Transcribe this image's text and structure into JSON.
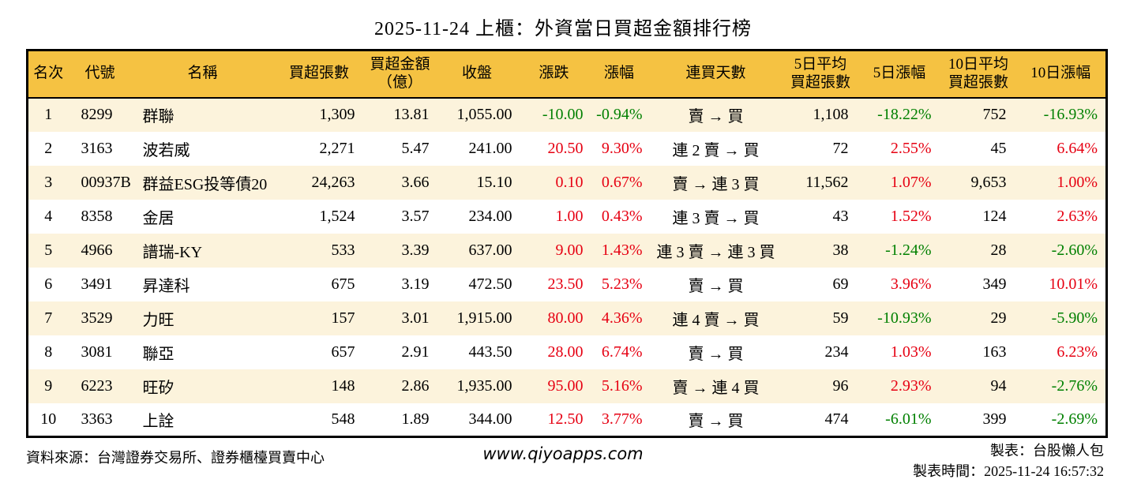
{
  "title": "2025-11-24 上櫃：外資當日買超金額排行榜",
  "chart_data": {
    "type": "table",
    "title": "2025-11-24 上櫃：外資當日買超金額排行榜",
    "columns": [
      "名次",
      "代號",
      "名稱",
      "買超張數",
      "買超金額\n（億）",
      "收盤",
      "漲跌",
      "漲幅",
      "連買天數",
      "5日平均\n買超張數",
      "5日漲幅",
      "10日平均\n買超張數",
      "10日漲幅"
    ],
    "rows": [
      [
        "1",
        "8299",
        "群聯",
        "1,309",
        "13.81",
        "1,055.00",
        "-10.00",
        "-0.94%",
        "賣 → 買",
        "1,108",
        "-18.22%",
        "752",
        "-16.93%"
      ],
      [
        "2",
        "3163",
        "波若威",
        "2,271",
        "5.47",
        "241.00",
        "20.50",
        "9.30%",
        "連 2 賣 → 買",
        "72",
        "2.55%",
        "45",
        "6.64%"
      ],
      [
        "3",
        "00937B",
        "群益ESG投等債20",
        "24,263",
        "3.66",
        "15.10",
        "0.10",
        "0.67%",
        "賣 → 連 3 買",
        "11,562",
        "1.07%",
        "9,653",
        "1.00%"
      ],
      [
        "4",
        "8358",
        "金居",
        "1,524",
        "3.57",
        "234.00",
        "1.00",
        "0.43%",
        "連 3 賣 → 買",
        "43",
        "1.52%",
        "124",
        "2.63%"
      ],
      [
        "5",
        "4966",
        "譜瑞-KY",
        "533",
        "3.39",
        "637.00",
        "9.00",
        "1.43%",
        "連 3 賣 → 連 3 買",
        "38",
        "-1.24%",
        "28",
        "-2.60%"
      ],
      [
        "6",
        "3491",
        "昇達科",
        "675",
        "3.19",
        "472.50",
        "23.50",
        "5.23%",
        "賣 → 買",
        "69",
        "3.96%",
        "349",
        "10.01%"
      ],
      [
        "7",
        "3529",
        "力旺",
        "157",
        "3.01",
        "1,915.00",
        "80.00",
        "4.36%",
        "連 4 賣 → 買",
        "59",
        "-10.93%",
        "29",
        "-5.90%"
      ],
      [
        "8",
        "3081",
        "聯亞",
        "657",
        "2.91",
        "443.50",
        "28.00",
        "6.74%",
        "賣 → 買",
        "234",
        "1.03%",
        "163",
        "6.23%"
      ],
      [
        "9",
        "6223",
        "旺矽",
        "148",
        "2.86",
        "1,935.00",
        "95.00",
        "5.16%",
        "賣 → 連 4 買",
        "96",
        "2.93%",
        "94",
        "-2.76%"
      ],
      [
        "10",
        "3363",
        "上詮",
        "548",
        "1.89",
        "344.00",
        "12.50",
        "3.77%",
        "賣 → 買",
        "474",
        "-6.01%",
        "399",
        "-2.69%"
      ]
    ],
    "layout_hints": {
      "header_bg": "#F5C242",
      "row_alt_bg": "#FCF3DC",
      "up_color_red": "#E60012",
      "down_color_green": "#008000",
      "color_rule": "negative values green, positive values red (Taiwan market convention)",
      "colored_column_indexes": [
        6,
        7,
        10,
        12
      ]
    }
  },
  "footer": {
    "source": "資料來源：台灣證券交易所、證券櫃檯買賣中心",
    "website": "www.qiyoapps.com",
    "author": "製表：台股懶人包",
    "generated_at": "製表時間：2025-11-24 16:57:32"
  }
}
